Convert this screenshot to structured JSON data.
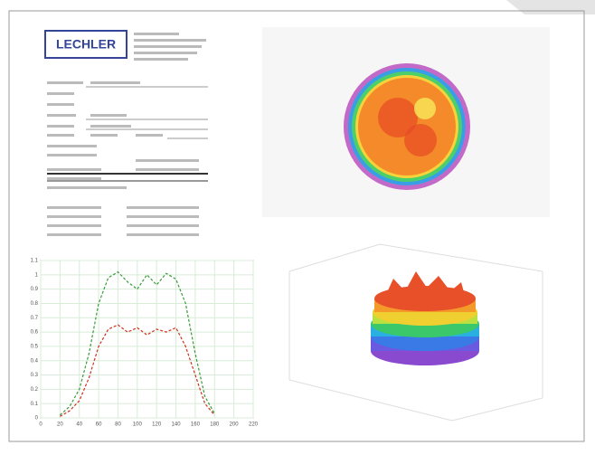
{
  "logo": "LECHLER",
  "chart_data": {
    "type": "line",
    "x": [
      20,
      30,
      40,
      50,
      60,
      70,
      80,
      90,
      100,
      110,
      120,
      130,
      140,
      150,
      160,
      170,
      180
    ],
    "series": [
      {
        "color": "#3a9a3a",
        "values": [
          0.02,
          0.08,
          0.2,
          0.45,
          0.8,
          0.98,
          1.02,
          0.95,
          0.9,
          1.0,
          0.93,
          1.01,
          0.97,
          0.8,
          0.45,
          0.15,
          0.03
        ]
      },
      {
        "color": "#d03020",
        "values": [
          0.01,
          0.05,
          0.12,
          0.28,
          0.5,
          0.62,
          0.65,
          0.6,
          0.63,
          0.58,
          0.62,
          0.6,
          0.63,
          0.5,
          0.3,
          0.1,
          0.02
        ]
      }
    ],
    "xlim": [
      0,
      220
    ],
    "xticks": [
      0,
      20,
      40,
      60,
      80,
      100,
      120,
      140,
      160,
      180,
      200,
      220
    ],
    "ylim": [
      0,
      1.1
    ],
    "yticks": [
      0,
      0.1,
      0.2,
      0.3,
      0.4,
      0.5,
      0.6,
      0.7,
      0.8,
      0.9,
      1,
      1.1
    ],
    "grid": true
  }
}
